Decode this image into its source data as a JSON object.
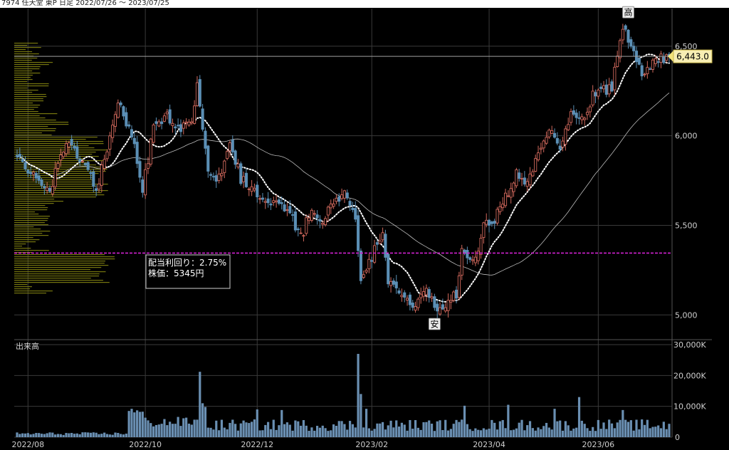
{
  "title": "7974 任天堂 東P 日足 2022/07/26 〜 2023/07/25",
  "chart_data": {
    "type": "candlestick",
    "price_axis": {
      "ticks": [
        "5,000",
        "5,500",
        "6,000",
        "6,500"
      ],
      "values": [
        5000,
        5500,
        6000,
        6500
      ],
      "ylim": [
        4870,
        6710
      ]
    },
    "volume_axis": {
      "label": "出来高",
      "ticks": [
        "0",
        "10,000K",
        "20,000K",
        "30,000K"
      ],
      "values": [
        0,
        10000,
        20000,
        30000
      ],
      "unit": "K"
    },
    "x_ticks": [
      {
        "label": "2022/08",
        "date": "2022/08/01"
      },
      {
        "label": "2022/10",
        "date": "2022/10/03"
      },
      {
        "label": "2022/12",
        "date": "2022/12/01"
      },
      {
        "label": "2023/02",
        "date": "2023/02/01"
      },
      {
        "label": "2023/04",
        "date": "2023/04/03"
      },
      {
        "label": "2023/06",
        "date": "2023/06/01"
      }
    ],
    "current_price": {
      "label": "6,443.0",
      "value": 6443.0
    },
    "dividend_line": {
      "value": 5345,
      "color": "#d020d0"
    },
    "info_box": {
      "line1": "配当利回り：2.75%",
      "line2": "株価：5345円"
    },
    "high_marker": {
      "label": "高",
      "value": 6610
    },
    "low_marker": {
      "label": "安",
      "value": 5005
    },
    "anchors": [
      {
        "i": 0,
        "c": 5880
      },
      {
        "i": 12,
        "c": 5690
      },
      {
        "i": 18,
        "c": 5985
      },
      {
        "i": 25,
        "c": 5820
      },
      {
        "i": 29,
        "c": 5700
      },
      {
        "i": 32,
        "c": 5880
      },
      {
        "i": 37,
        "c": 6180
      },
      {
        "i": 42,
        "c": 6020
      },
      {
        "i": 46,
        "c": 5700
      },
      {
        "i": 50,
        "c": 6040
      },
      {
        "i": 55,
        "c": 6110
      },
      {
        "i": 59,
        "c": 6040
      },
      {
        "i": 64,
        "c": 6080
      },
      {
        "i": 66,
        "c": 6280
      },
      {
        "i": 70,
        "c": 5780
      },
      {
        "i": 74,
        "c": 5760
      },
      {
        "i": 78,
        "c": 5980
      },
      {
        "i": 82,
        "c": 5760
      },
      {
        "i": 86,
        "c": 5700
      },
      {
        "i": 92,
        "c": 5650
      },
      {
        "i": 96,
        "c": 5600
      },
      {
        "i": 100,
        "c": 5570
      },
      {
        "i": 104,
        "c": 5430
      },
      {
        "i": 108,
        "c": 5600
      },
      {
        "i": 112,
        "c": 5520
      },
      {
        "i": 116,
        "c": 5640
      },
      {
        "i": 120,
        "c": 5670
      },
      {
        "i": 124,
        "c": 5560
      },
      {
        "i": 126,
        "c": 5180
      },
      {
        "i": 130,
        "c": 5320
      },
      {
        "i": 134,
        "c": 5480
      },
      {
        "i": 136,
        "c": 5200
      },
      {
        "i": 140,
        "c": 5140
      },
      {
        "i": 145,
        "c": 5050
      },
      {
        "i": 150,
        "c": 5150
      },
      {
        "i": 154,
        "c": 5025
      },
      {
        "i": 158,
        "c": 5075
      },
      {
        "i": 161,
        "c": 5110
      },
      {
        "i": 163,
        "c": 5380
      },
      {
        "i": 167,
        "c": 5280
      },
      {
        "i": 171,
        "c": 5490
      },
      {
        "i": 175,
        "c": 5530
      },
      {
        "i": 179,
        "c": 5650
      },
      {
        "i": 183,
        "c": 5790
      },
      {
        "i": 187,
        "c": 5720
      },
      {
        "i": 191,
        "c": 5900
      },
      {
        "i": 195,
        "c": 6060
      },
      {
        "i": 199,
        "c": 5950
      },
      {
        "i": 203,
        "c": 6110
      },
      {
        "i": 207,
        "c": 6080
      },
      {
        "i": 211,
        "c": 6220
      },
      {
        "i": 215,
        "c": 6260
      },
      {
        "i": 218,
        "c": 6260
      },
      {
        "i": 221,
        "c": 6550
      },
      {
        "i": 223,
        "c": 6580
      },
      {
        "i": 226,
        "c": 6480
      },
      {
        "i": 229,
        "c": 6360
      },
      {
        "i": 232,
        "c": 6400
      },
      {
        "i": 235,
        "c": 6430
      },
      {
        "i": 239,
        "c": 6443
      }
    ],
    "volume_spikes": [
      {
        "i": 41,
        "v": 8500
      },
      {
        "i": 42,
        "v": 9200
      },
      {
        "i": 44,
        "v": 8700
      },
      {
        "i": 67,
        "v": 21200
      },
      {
        "i": 68,
        "v": 11000
      },
      {
        "i": 69,
        "v": 9800
      },
      {
        "i": 88,
        "v": 9000
      },
      {
        "i": 97,
        "v": 8800
      },
      {
        "i": 125,
        "v": 27000
      },
      {
        "i": 126,
        "v": 14000
      },
      {
        "i": 128,
        "v": 9200
      },
      {
        "i": 164,
        "v": 10200
      },
      {
        "i": 180,
        "v": 10500
      },
      {
        "i": 197,
        "v": 9200
      },
      {
        "i": 206,
        "v": 13000
      },
      {
        "i": 222,
        "v": 8800
      }
    ]
  }
}
